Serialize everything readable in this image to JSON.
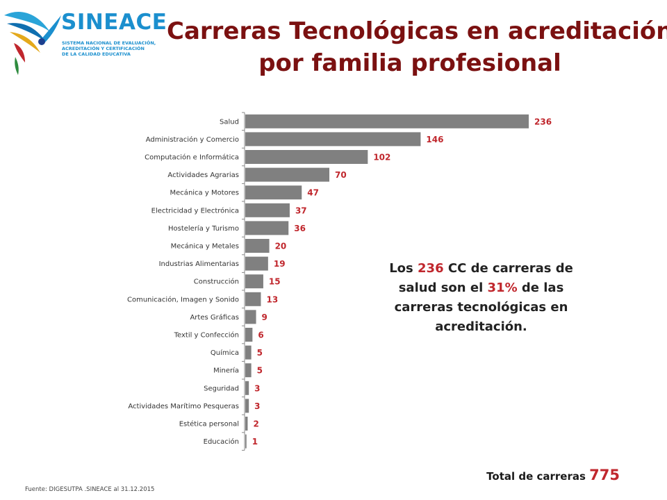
{
  "logo": {
    "name": "SINEACE",
    "subtitle_lines": [
      "SISTEMA NACIONAL DE EVALUACIÓN,",
      "ACREDITACIÓN Y CERTIFICACIÓN",
      "DE LA CALIDAD EDUCATIVA"
    ]
  },
  "title": {
    "line1": "Carreras Tecnológicas en acreditación",
    "line2": "por familia profesional"
  },
  "callout": {
    "part1": "Los ",
    "num": "236",
    "part2": " CC de carreras de salud son el ",
    "pct": "31%",
    "part3": " de las carreras tecnológicas en acreditación."
  },
  "total": {
    "label": "Total de carreras ",
    "value": "775"
  },
  "source": "Fuente: DIGESUTPA .SINEACE al 31.12.2015",
  "colors": {
    "bar": "#808080",
    "value_label": "#c0272d",
    "title": "#7b1111"
  },
  "chart_data": {
    "type": "bar",
    "orientation": "horizontal",
    "categories": [
      "Salud",
      "Administración y Comercio",
      "Computación e Informática",
      "Actividades Agrarias",
      "Mecánica y Motores",
      "Electricidad y Electrónica",
      "Hostelería y Turismo",
      "Mecánica y Metales",
      "Industrias Alimentarias",
      "Construcción",
      "Comunicación, Imagen y Sonido",
      "Artes Gráficas",
      "Textil y Confección",
      "Química",
      "Minería",
      "Seguridad",
      "Actividades Marítimo Pesqueras",
      "Estética personal",
      "Educación"
    ],
    "values": [
      236,
      146,
      102,
      70,
      47,
      37,
      36,
      20,
      19,
      15,
      13,
      9,
      6,
      5,
      5,
      3,
      3,
      2,
      1
    ],
    "value_labels": true,
    "xlim": [
      0,
      236
    ],
    "grid": false,
    "legend": "none"
  }
}
